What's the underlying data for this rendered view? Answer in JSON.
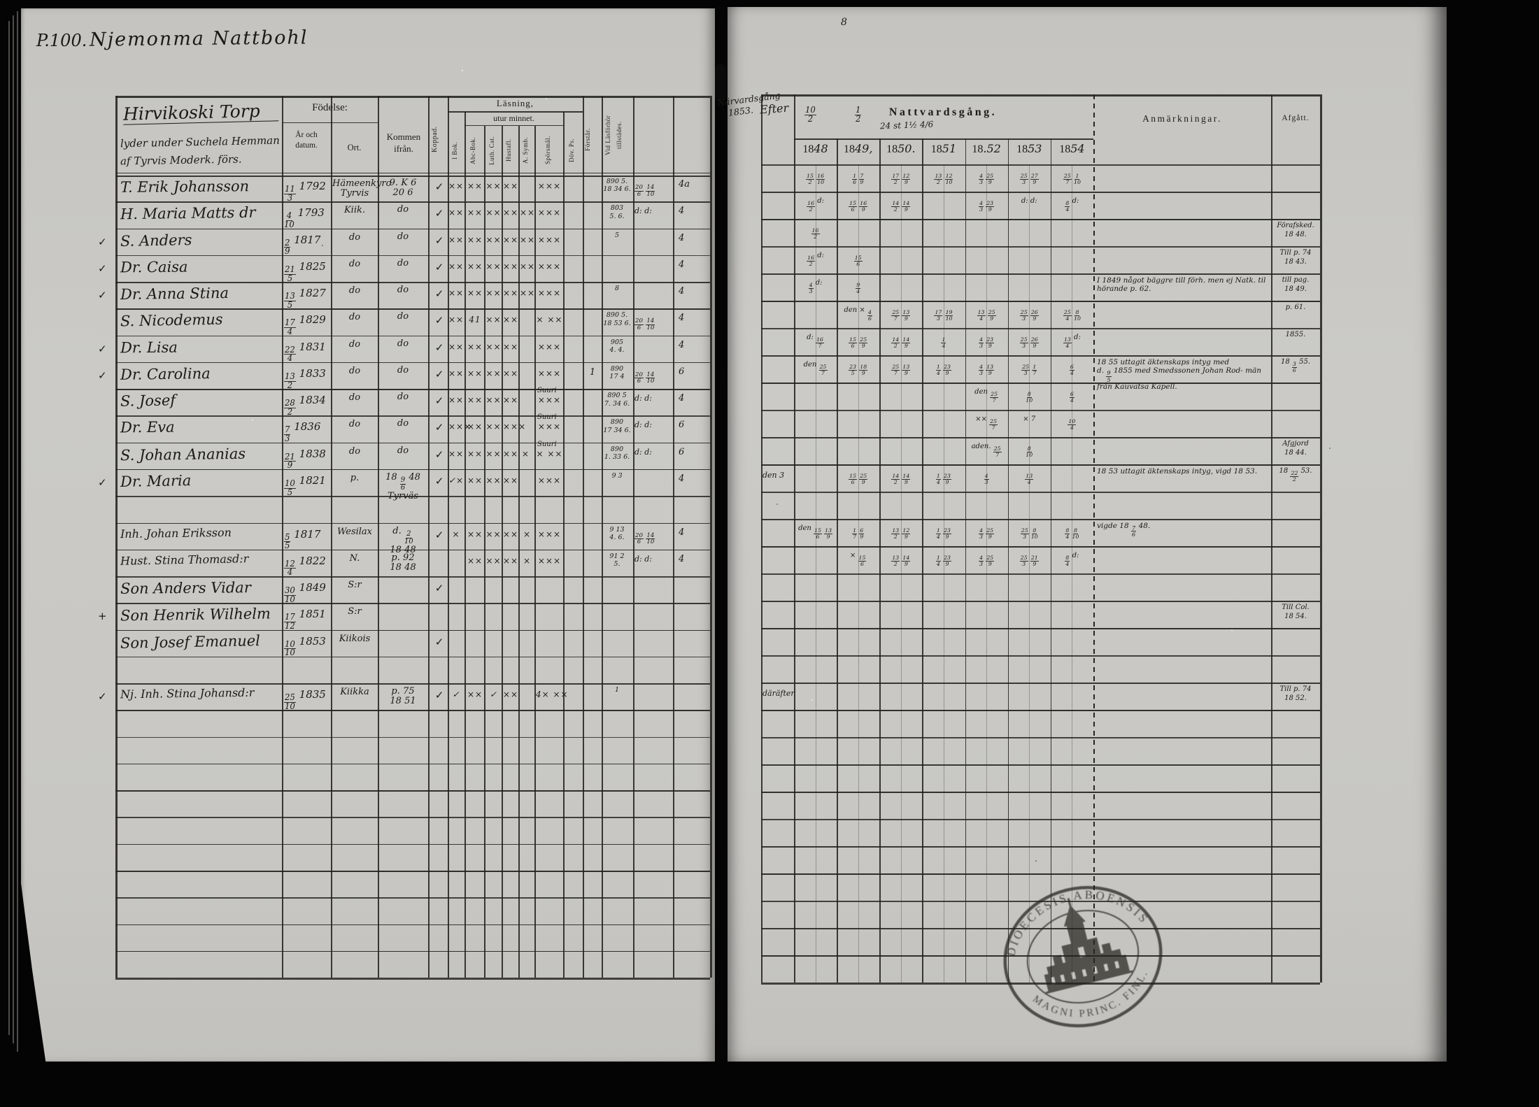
{
  "page": {
    "label": "P.100.",
    "title": "Njemonma Nattbohl",
    "corner_mark": "8"
  },
  "left_table": {
    "house_note": [
      "Hirvikoski Torp",
      "lyder under Suchela Hemman",
      "af Tyrvis Moderk. förs."
    ],
    "headers": {
      "fodelse": "Födelse:",
      "ar": "År och datum.",
      "ort": "Ort.",
      "kommen": "Kommen ifrån.",
      "koppad": "Koppad.",
      "lasning": "Läsning,",
      "utur": "utur minnet.",
      "forstar": "Förstår.",
      "vidlas1": "Vid Läsförhör",
      "vidlas2": "tillstädes."
    },
    "vertical_labels": [
      "I Bok.",
      "Abc-Bok.",
      "Luth. Cat.",
      "Hustafl.",
      "A. Symb.",
      "Spörsmål.",
      "Döv. Ps."
    ]
  },
  "right_table": {
    "pre_note": "Efter",
    "narv_note": [
      "Närvardsgång",
      "1853."
    ],
    "top_fracs": [
      "10/2",
      "1/2"
    ],
    "top_scribble": "24 st  1½ 4/6",
    "title": "Nattvardsgång.",
    "years": [
      "1848",
      "1849,",
      "1850.",
      "1851",
      "18.52",
      "1853",
      "1854"
    ],
    "anm": "Anmärkningar.",
    "afg": "Afgått."
  },
  "rows": [
    {
      "i": 0,
      "name": "T. Erik Johansson",
      "b": "11/3 1792",
      "ort": "Hämeenkyro|Tyrvis",
      "kom": "9. K 6|20 6",
      "kopp": "✓",
      "rm": [
        "××",
        "××",
        "××",
        "××",
        "",
        "×××",
        ""
      ],
      "vid": "890 5.|18 34 6.",
      "n1": "20/6 14/10",
      "n2": "4a",
      "yrs": [
        "15/2 16/10",
        "1/6 7/9",
        "17/2 12/9",
        "13/2 12/10",
        "4/3 25/9",
        "25/3 27/9",
        "25/7 1/10"
      ]
    },
    {
      "i": 1,
      "name": "H. Maria Matts dr",
      "b": "4/10 1793",
      "ort": "Kiik.",
      "kom": "do",
      "kopp": "✓",
      "rm": [
        "××",
        "××",
        "××",
        "××",
        "××",
        "×××",
        ""
      ],
      "vid": "803|5. 6.",
      "n1": "d: d:",
      "n2": "4",
      "yrs": [
        "16/2 d:",
        "15/6 16/9",
        "14/2 14/9",
        "",
        "4/3 23/9",
        "d: d:",
        "8/4 d:"
      ]
    },
    {
      "i": 2,
      "chk": "✓",
      "name": "S. Anders",
      "b": "2/9 1817",
      "ort": "do",
      "kom": "do",
      "kopp": "✓",
      "rm": [
        "××",
        "××",
        "××",
        "××",
        "××",
        "×××",
        ""
      ],
      "vid": "5",
      "n2": "4",
      "yrs": [
        "16/2",
        "",
        "",
        "",
        "",
        "",
        ""
      ],
      "afg": "Förafsked.|18 48."
    },
    {
      "i": 3,
      "chk": "✓",
      "name": "Dr. Caisa",
      "b": "21/5 1825",
      "ort": "do",
      "kom": "do",
      "kopp": "✓",
      "rm": [
        "××",
        "××",
        "××",
        "××",
        "××",
        "×××",
        ""
      ],
      "n2": "4",
      "yrs": [
        "16/2 d:",
        "15/6",
        "",
        "",
        "",
        "",
        ""
      ],
      "afg": "Till p. 74|18 43."
    },
    {
      "i": 4,
      "chk": "✓",
      "name": "Dr. Anna Stina",
      "b": "13/5 1827",
      "ort": "do",
      "kom": "do",
      "kopp": "✓",
      "rm": [
        "××",
        "××",
        "××",
        "××",
        "××",
        "×××",
        ""
      ],
      "vid": "8",
      "n2": "4",
      "yrs": [
        "4/3 d:",
        "9/4",
        "",
        "",
        "",
        "",
        ""
      ],
      "anm": "I 1849 något bäggre till förh. men ej Natk. til|hörande p. 62.",
      "afg": "till pag.|18 49."
    },
    {
      "i": 5,
      "name": "S. Nicodemus",
      "b": "17/4 1829",
      "ort": "do",
      "kom": "do",
      "kopp": "✓",
      "rm": [
        "××",
        "41",
        "××",
        "××",
        "",
        "× ××",
        ""
      ],
      "vid": "890 5.|18 53 6.",
      "n1": "20/6 14/10",
      "n2": "4",
      "yrs": [
        "",
        "den × 4/6",
        "25/7 13/9",
        "17/3 19/10",
        "13/4 25/9",
        "25/3 26/9",
        "25/4 8/10"
      ],
      "afg": "p. 61."
    },
    {
      "i": 6,
      "chk": "✓",
      "name": "Dr. Lisa",
      "b": "22/4 1831",
      "ort": "do",
      "kom": "do",
      "kopp": "✓",
      "rm": [
        "××",
        "××",
        "××",
        "××",
        "",
        "×××",
        ""
      ],
      "vid": "905|4. 4.",
      "n2": "4",
      "yrs": [
        "d: 16/7",
        "15/6 25/9",
        "14/2 14/9",
        "1/4",
        "4/3 23/9",
        "25/3 26/9",
        "13/4 d:"
      ],
      "afg": "1855."
    },
    {
      "i": 7,
      "chk": "✓",
      "name": "Dr. Carolina",
      "b": "13/2 1833",
      "ort": "do",
      "kom": "do",
      "kopp": "✓",
      "rm": [
        "××",
        "××",
        "××",
        "××",
        "",
        "×××",
        ""
      ],
      "forst": "1",
      "vid": "890|17 4",
      "n1": "20/6 14/10",
      "n2": "6",
      "yrs": [
        "den 25/7",
        "23/5 18/9",
        "25/7 13/9",
        "1/4 23/9",
        "4/3 13/9",
        "25/3 1/7",
        "6/4"
      ],
      "anm": "18 55 uttagit äktenskaps intyg med|d. 9/5 1855 med Smedssonen Johan Rod- män från Kauvatsa Kapell.",
      "afg": "18 3/6 55."
    },
    {
      "i": 8,
      "name": "S. Josef",
      "b": "28/2 1834",
      "ort": "do",
      "kom": "do",
      "kopp": "✓",
      "rm": [
        "××",
        "××",
        "××",
        "××",
        "",
        "×××",
        ""
      ],
      "sup": "Suuri",
      "vid": "890 5|7. 34 6.",
      "n1": "d: d:",
      "n2": "4",
      "yrs": [
        "",
        "",
        "",
        "",
        "den 25/7",
        "8/10",
        "6/4"
      ]
    },
    {
      "i": 9,
      "name": "Dr. Eva",
      "b": "7/3 1836",
      "ort": "do",
      "kom": "do",
      "kopp": "✓",
      "rm": [
        "×××",
        "××",
        "××",
        "×××",
        "",
        "×××",
        ""
      ],
      "sup": "Suuri",
      "vid": "890|17 34 6.",
      "n1": "d: d:",
      "n2": "6",
      "yrs": [
        "",
        "",
        "",
        "",
        "×× 25/7",
        "× 7",
        "10/4"
      ]
    },
    {
      "i": 10,
      "name": "S. Johan Ananias",
      "b": "21/9 1838",
      "ort": "do",
      "kom": "do",
      "kopp": "✓",
      "rm": [
        "××",
        "××",
        "××",
        "×× ×",
        "",
        "× ××",
        ""
      ],
      "sup": "Suuri",
      "vid": "890|1. 33 6.",
      "n1": "d: d:",
      "n2": "6",
      "yrs": [
        "",
        "",
        "",
        "",
        "aden. 25/7",
        "8/10",
        ""
      ],
      "afg": "Afgjord|18 44."
    },
    {
      "i": 11,
      "chk": "✓",
      "name": "Dr. Maria",
      "b": "10/5 1821",
      "ort": "p.",
      "kom": "18 9/6 48|Tyrväs",
      "kopp": "✓",
      "rm": [
        "✓×",
        "××",
        "××",
        "××",
        "",
        "×××",
        ""
      ],
      "vid": "9 3",
      "n2": "4",
      "pre": "den 3",
      "yrs": [
        "",
        "15/6 25/9",
        "14/2 14/9",
        "1/4 23/9",
        "4/3",
        "13/4",
        ""
      ],
      "anm": "18 53 uttagit äktenskaps intyg, vigd 18 53.",
      "afg": "18 22/2 53."
    },
    {
      "i": 13,
      "name": "Inh. Johan Eriksson",
      "b": "5/5 1817",
      "ort": "Wesilax",
      "kom": "d. 2/10|18 48",
      "kopp": "✓",
      "rm": [
        "×",
        "××",
        "××",
        "××",
        "×",
        "×××",
        ""
      ],
      "vid": "9 13|4. 6.",
      "n1": "20/6 14/10",
      "n2": "4",
      "yrs": [
        "den 15/6 13/9",
        "1/7 6/9",
        "13/2 12/9",
        "1/4 23/9",
        "4/3 25/9",
        "25/3 8/10",
        "8/4 8/10"
      ],
      "anm": "vigde 18 7/6 48."
    },
    {
      "i": 14,
      "name": "Hust. Stina Thomasd:r",
      "b": "12/4 1822",
      "ort": "N.",
      "kom": "p. 92|18 48",
      "rm": [
        "",
        "××",
        "××",
        "××",
        "×",
        "×××",
        ""
      ],
      "vid": "91 2|5.",
      "n1": "d: d:",
      "n2": "4",
      "yrs": [
        "",
        "× 15/6",
        "13/2 14/9",
        "1/4 23/9",
        "4/3 25/9",
        "25/3 21/9",
        "8/4 d:"
      ]
    },
    {
      "i": 15,
      "name": "Son Anders Vidar",
      "b": "30/10 1849",
      "ort": "S:r",
      "kopp": "✓"
    },
    {
      "i": 16,
      "chk": "+",
      "name": "Son Henrik Wilhelm",
      "b": "17/12 1851",
      "ort": "S:r",
      "afg": "Till Col.|18 54."
    },
    {
      "i": 17,
      "name": "Son Josef Emanuel",
      "b": "10/10 1853",
      "ort": "Kiikois",
      "kopp": "✓"
    },
    {
      "i": 19,
      "chk": "✓",
      "name": "Nj. Inh. Stina Johansd:r",
      "b": "25/10 1835",
      "ort": "Kiikka",
      "kom": "p. 75|18 51",
      "kopp": "✓",
      "rm": [
        "✓",
        "××",
        "✓",
        "××",
        "",
        "4× ××",
        ""
      ],
      "vid": "1",
      "pre": "däräfter",
      "yrs": [
        "",
        "",
        "",
        "",
        "",
        "",
        ""
      ],
      "afg": "Till p. 74|18 52."
    }
  ],
  "stamp": {
    "top": "DIOECESIS ABOENSIS",
    "bottom": "MAGNI PRINC. FINL."
  }
}
